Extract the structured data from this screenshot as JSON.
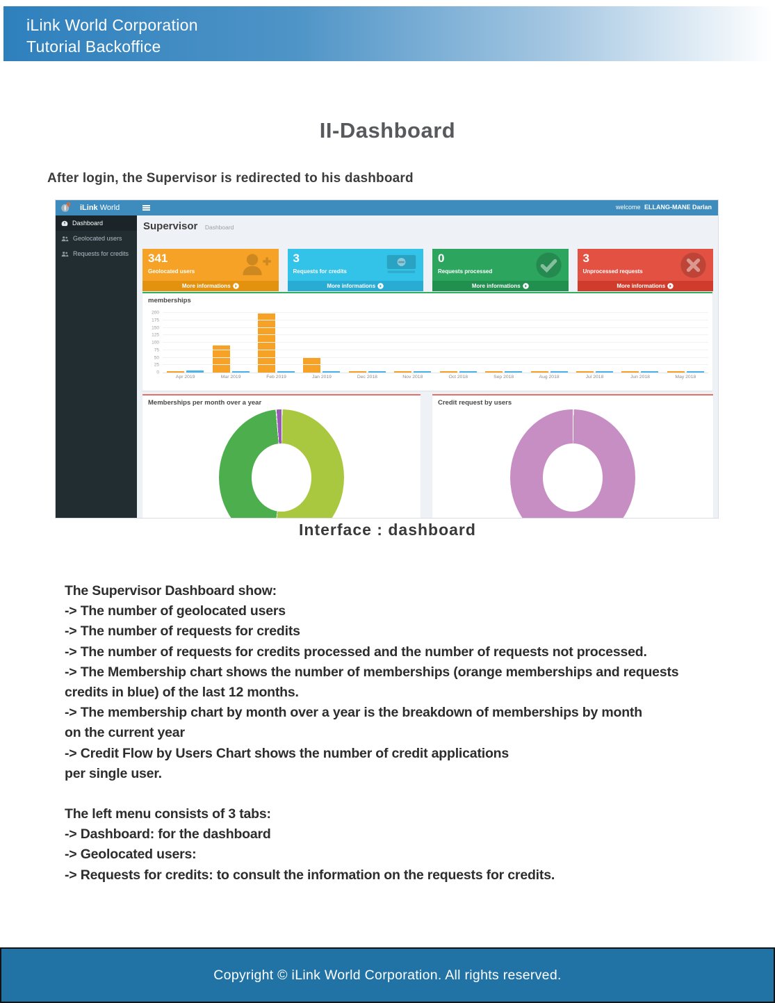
{
  "page": {
    "header": {
      "line1": "iLink World Corporation",
      "line2": "Tutorial Backoffice"
    },
    "title": "II-Dashboard",
    "subtitle": "After login, the Supervisor is redirected to his dashboard",
    "caption": "Interface : dashboard",
    "paragraph1": [
      "The Supervisor Dashboard show:",
      "-> The number of geolocated users",
      "-> The number of requests for credits",
      "-> The number of requests for credits processed and the number of requests not processed.",
      "-> The Membership chart shows the number of memberships (orange memberships and requests",
      "credits in blue) of the last 12 months.",
      "-> The membership chart by month over a year is the breakdown of memberships by month",
      "on the current year",
      "-> Credit Flow by Users Chart shows the number of credit applications",
      "per single user."
    ],
    "paragraph2": [
      "The left menu consists of 3 tabs:",
      "-> Dashboard: for the dashboard",
      "-> Geolocated users:",
      "-> Requests for credits: to consult the information on the requests for credits."
    ],
    "footer": "Copyright © iLink World Corporation. All rights reserved."
  },
  "dashboard": {
    "brand": {
      "bold": "iLink",
      "rest": " World",
      "logo_icon": "globe-pin-icon"
    },
    "topbar": {
      "menu_icon": "hamburger-icon",
      "welcome_prefix": "welcome",
      "user": "ELLANG-MANE Darlan"
    },
    "sidebar": {
      "items": [
        {
          "label": "Dashboard",
          "icon": "dashboard-icon",
          "active": true
        },
        {
          "label": "Geolocated users",
          "icon": "users-icon",
          "active": false
        },
        {
          "label": "Requests for credits",
          "icon": "users-icon",
          "active": false
        }
      ]
    },
    "page_heading": {
      "title": "Supervisor",
      "breadcrumb": "Dashboard"
    },
    "stat_cards": [
      {
        "value": "341",
        "label": "Geolocated users",
        "link": "More informations",
        "icon": "user-plus-icon",
        "color": "#f5a226",
        "footer_color": "#e2920e"
      },
      {
        "value": "3",
        "label": "Requests for credits",
        "link": "More informations",
        "icon": "money-icon",
        "color": "#33c3e9",
        "footer_color": "#28acd4"
      },
      {
        "value": "0",
        "label": "Requests processed",
        "link": "More informations",
        "icon": "check-circle-icon",
        "color": "#2ca55f",
        "footer_color": "#218f4e"
      },
      {
        "value": "3",
        "label": "Unprocessed requests",
        "link": "More informations",
        "icon": "x-circle-icon",
        "color": "#e25142",
        "footer_color": "#d03c2b"
      }
    ]
  },
  "chart_data": [
    {
      "type": "bar",
      "title": "memberships",
      "categories": [
        "Apr 2019",
        "Mar 2019",
        "Feb 2019",
        "Jan 2019",
        "Dec 2018",
        "Nov 2018",
        "Oct 2018",
        "Sep 2018",
        "Aug 2018",
        "Jul 2018",
        "Jun 2018",
        "May 2018"
      ],
      "series": [
        {
          "name": "memberships",
          "color": "#f5a226",
          "values": [
            1,
            90,
            198,
            52,
            1,
            4,
            1,
            2,
            1,
            1,
            1,
            1
          ]
        },
        {
          "name": "requests credits",
          "color": "#4db3e6",
          "values": [
            8,
            2,
            2,
            2,
            2,
            2,
            2,
            2,
            2,
            2,
            2,
            2
          ]
        }
      ],
      "ylim": [
        0,
        200
      ],
      "yticks": [
        0,
        25,
        50,
        75,
        100,
        125,
        150,
        175,
        200
      ],
      "grid": true,
      "legend": "none"
    },
    {
      "type": "pie",
      "donut": true,
      "title": "Memberships per month over a year",
      "slices": [
        {
          "label": "segment-1",
          "color": "#a9c83f",
          "percent": 51.8
        },
        {
          "label": "segment-2",
          "color": "#4cae4c",
          "percent": 46.8
        },
        {
          "label": "segment-3",
          "color": "#9b59b6",
          "percent": 1.4
        }
      ]
    },
    {
      "type": "pie",
      "donut": true,
      "title": "Credit request by users",
      "slices": [
        {
          "label": "segment-1",
          "color": "#c78ec4",
          "percent": 100
        }
      ]
    }
  ]
}
